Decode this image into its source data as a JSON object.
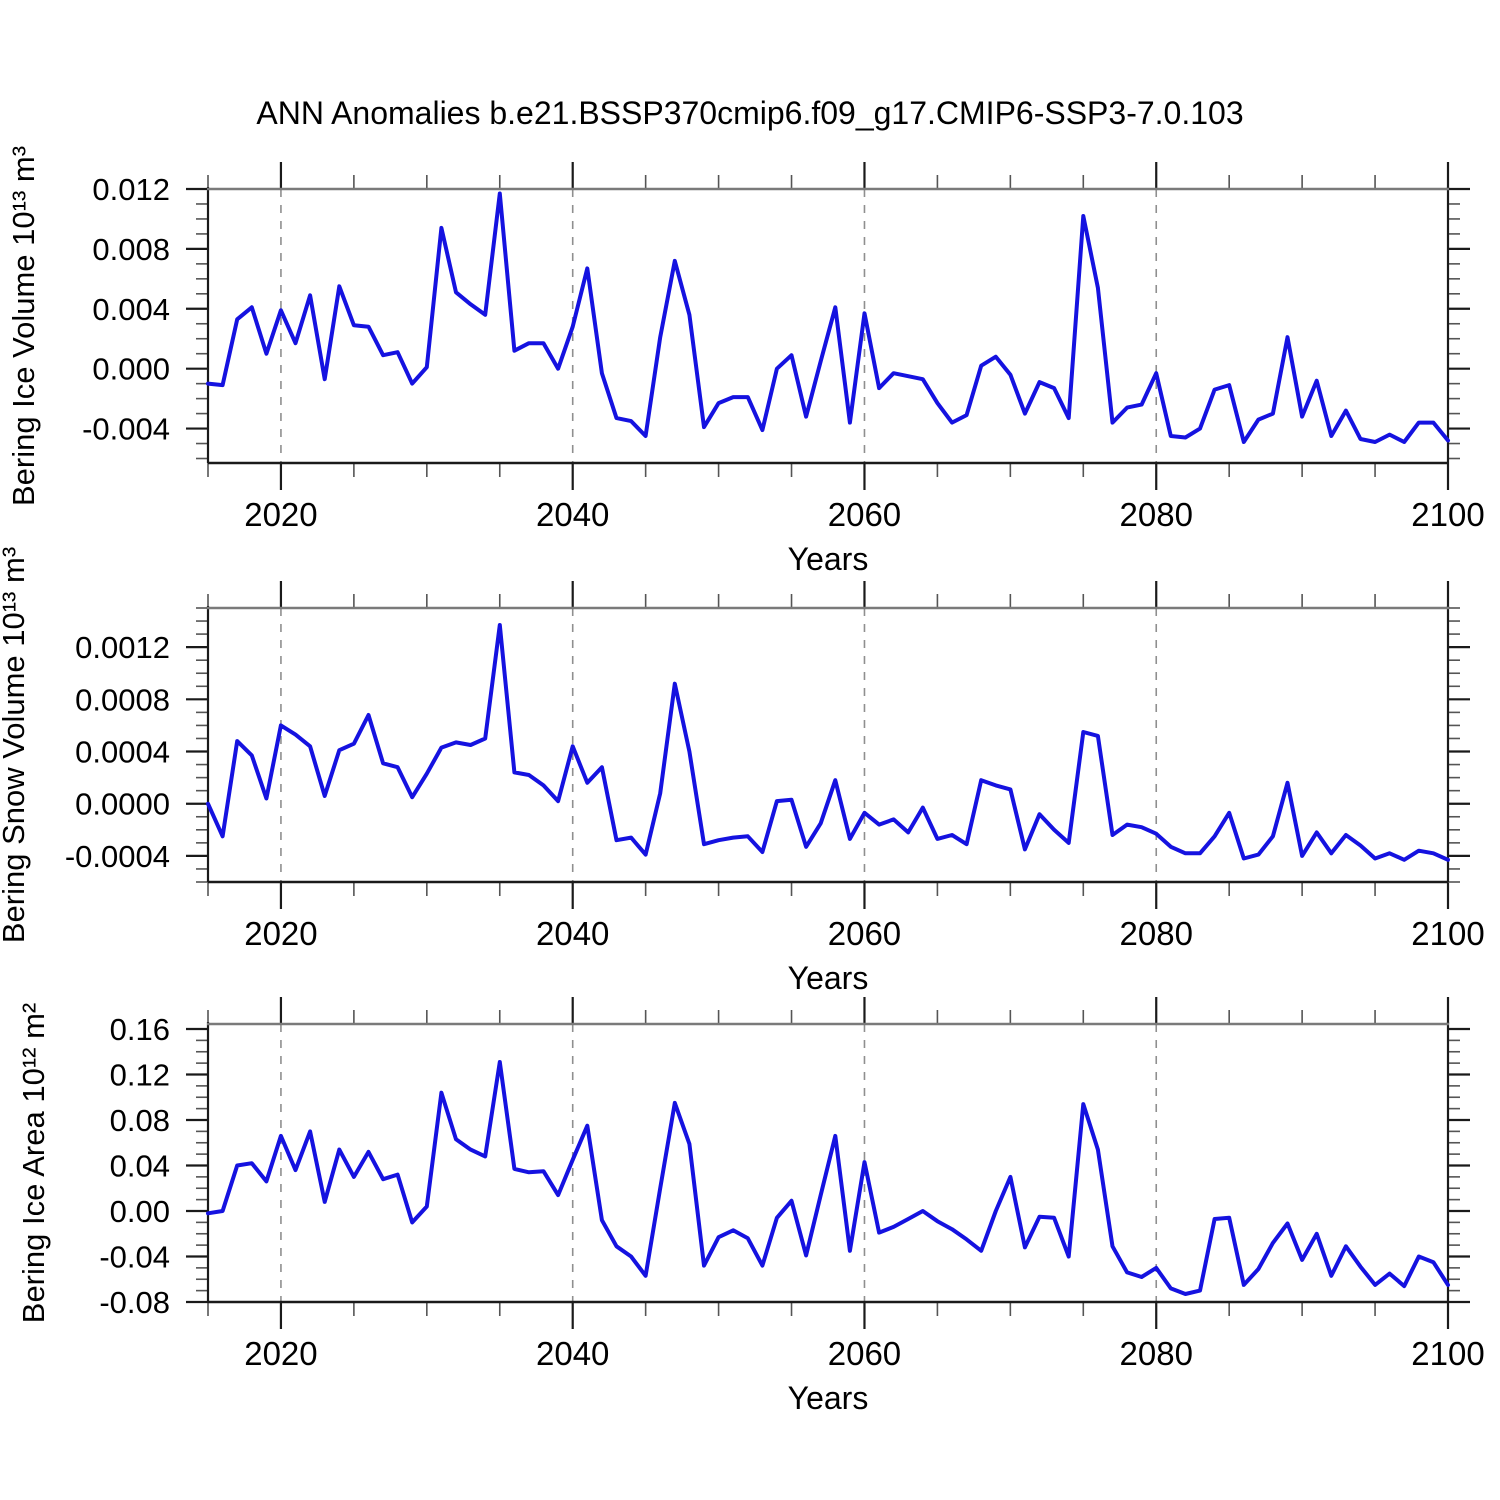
{
  "title": "ANN Anomalies b.e21.BSSP370cmip6.f09_g17.CMIP6-SSP3-7.0.103",
  "chart_data": {
    "type": "line",
    "title": "ANN Anomalies b.e21.BSSP370cmip6.f09_g17.CMIP6-SSP3-7.0.103",
    "xlabel": "Years",
    "xlim": [
      2015,
      2100
    ],
    "xticks": [
      2020,
      2040,
      2060,
      2080,
      2100
    ],
    "xtick_labels": [
      "2020",
      "2040",
      "2060",
      "2080",
      "2100"
    ],
    "x_minor_step": 5,
    "grid_years": [
      2020,
      2040,
      2060,
      2080
    ],
    "grid_style": "dashed",
    "legend": "none",
    "line_color": "#1512e0",
    "years": [
      2015,
      2016,
      2017,
      2018,
      2019,
      2020,
      2021,
      2022,
      2023,
      2024,
      2025,
      2026,
      2027,
      2028,
      2029,
      2030,
      2031,
      2032,
      2033,
      2034,
      2035,
      2036,
      2037,
      2038,
      2039,
      2040,
      2041,
      2042,
      2043,
      2044,
      2045,
      2046,
      2047,
      2048,
      2049,
      2050,
      2051,
      2052,
      2053,
      2054,
      2055,
      2056,
      2057,
      2058,
      2059,
      2060,
      2061,
      2062,
      2063,
      2064,
      2065,
      2066,
      2067,
      2068,
      2069,
      2070,
      2071,
      2072,
      2073,
      2074,
      2075,
      2076,
      2077,
      2078,
      2079,
      2080,
      2081,
      2082,
      2083,
      2084,
      2085,
      2086,
      2087,
      2088,
      2089,
      2090,
      2091,
      2092,
      2093,
      2094,
      2095,
      2096,
      2097,
      2098,
      2099,
      2100
    ],
    "panels": [
      {
        "name": "bering-ice-volume",
        "ylabel": "Bering Ice Volume 10¹³ m³",
        "ylim": [
          -0.0063,
          0.012
        ],
        "yticks": [
          -0.004,
          0,
          0.004,
          0.008,
          0.012
        ],
        "ytick_labels": [
          "-0.004",
          "0.000",
          "0.004",
          "0.008",
          "0.012"
        ],
        "y_minor_step": 0.001,
        "values": [
          -0.001,
          -0.0011,
          0.0033,
          0.0041,
          0.001,
          0.0039,
          0.0017,
          0.0049,
          -0.0007,
          0.0055,
          0.0029,
          0.0028,
          0.0009,
          0.0011,
          -0.001,
          0.0001,
          0.0094,
          0.0051,
          0.0043,
          0.0036,
          0.0117,
          0.0012,
          0.0017,
          0.0017,
          0.0,
          0.0028,
          0.0067,
          -0.0003,
          -0.0033,
          -0.0035,
          -0.0045,
          0.0021,
          0.0072,
          0.0036,
          -0.0039,
          -0.0023,
          -0.0019,
          -0.0019,
          -0.0041,
          0.0,
          0.0009,
          -0.0032,
          0.0005,
          0.0041,
          -0.0036,
          0.0037,
          -0.0013,
          -0.0003,
          -0.0005,
          -0.0007,
          -0.0023,
          -0.0036,
          -0.0031,
          0.0002,
          0.0008,
          -0.0004,
          -0.003,
          -0.0009,
          -0.0013,
          -0.0033,
          0.0102,
          0.0054,
          -0.0036,
          -0.0026,
          -0.0024,
          -0.0003,
          -0.0045,
          -0.0046,
          -0.004,
          -0.0014,
          -0.0011,
          -0.0049,
          -0.0034,
          -0.003,
          0.0021,
          -0.0032,
          -0.0008,
          -0.0045,
          -0.0028,
          -0.0047,
          -0.0049,
          -0.0044,
          -0.0049,
          -0.0036,
          -0.0036,
          -0.0048
        ]
      },
      {
        "name": "bering-snow-volume",
        "ylabel": "Bering Snow Volume 10¹³ m³",
        "ylim": [
          -0.0006,
          0.0015
        ],
        "yticks": [
          -0.0004,
          0,
          0.0004,
          0.0008,
          0.0012
        ],
        "ytick_labels": [
          "-0.0004",
          "0.0000",
          "0.0004",
          "0.0008",
          "0.0012"
        ],
        "y_minor_step": 0.0001,
        "values": [
          0.0,
          -0.00025,
          0.00048,
          0.00037,
          4e-05,
          0.0006,
          0.00053,
          0.00044,
          6e-05,
          0.00041,
          0.00046,
          0.00068,
          0.00031,
          0.00028,
          5e-05,
          0.00023,
          0.00043,
          0.00047,
          0.00045,
          0.0005,
          0.00137,
          0.00024,
          0.00022,
          0.00014,
          2e-05,
          0.00044,
          0.00016,
          0.00028,
          -0.00028,
          -0.00026,
          -0.00039,
          8e-05,
          0.00092,
          0.0004,
          -0.00031,
          -0.00028,
          -0.00026,
          -0.00025,
          -0.00037,
          2e-05,
          3e-05,
          -0.00033,
          -0.00015,
          0.00018,
          -0.00027,
          -7e-05,
          -0.00016,
          -0.00012,
          -0.00022,
          -3e-05,
          -0.00027,
          -0.00024,
          -0.00031,
          0.00018,
          0.00014,
          0.00011,
          -0.00035,
          -8e-05,
          -0.0002,
          -0.0003,
          0.00055,
          0.00052,
          -0.00024,
          -0.00016,
          -0.00018,
          -0.00023,
          -0.00033,
          -0.00038,
          -0.00038,
          -0.00025,
          -7e-05,
          -0.00042,
          -0.00039,
          -0.00025,
          0.00016,
          -0.0004,
          -0.00022,
          -0.00038,
          -0.00024,
          -0.00032,
          -0.00042,
          -0.00038,
          -0.00043,
          -0.00036,
          -0.00038,
          -0.00043
        ]
      },
      {
        "name": "bering-ice-area",
        "ylabel": "Bering Ice Area 10¹² m²",
        "ylim": [
          -0.08,
          0.1644
        ],
        "yticks": [
          -0.08,
          -0.04,
          0,
          0.04,
          0.08,
          0.12,
          0.16
        ],
        "ytick_labels": [
          "-0.08",
          "-0.04",
          "0.00",
          "0.04",
          "0.08",
          "0.12",
          "0.16"
        ],
        "y_minor_step": 0.01,
        "values": [
          -0.002,
          0.0,
          0.04,
          0.042,
          0.026,
          0.066,
          0.036,
          0.07,
          0.008,
          0.054,
          0.03,
          0.052,
          0.028,
          0.032,
          -0.01,
          0.004,
          0.104,
          0.063,
          0.054,
          0.048,
          0.131,
          0.037,
          0.034,
          0.035,
          0.014,
          0.045,
          0.075,
          -0.008,
          -0.031,
          -0.04,
          -0.057,
          0.02,
          0.095,
          0.059,
          -0.048,
          -0.023,
          -0.017,
          -0.024,
          -0.048,
          -0.006,
          0.009,
          -0.039,
          0.014,
          0.066,
          -0.035,
          0.043,
          -0.019,
          -0.014,
          -0.007,
          0.0,
          -0.009,
          -0.016,
          -0.025,
          -0.035,
          0.0,
          0.03,
          -0.032,
          -0.005,
          -0.006,
          -0.04,
          0.094,
          0.054,
          -0.031,
          -0.054,
          -0.058,
          -0.05,
          -0.068,
          -0.073,
          -0.07,
          -0.007,
          -0.006,
          -0.065,
          -0.051,
          -0.028,
          -0.011,
          -0.043,
          -0.02,
          -0.057,
          -0.031,
          -0.049,
          -0.065,
          -0.055,
          -0.066,
          -0.04,
          -0.045,
          -0.065
        ]
      }
    ]
  }
}
